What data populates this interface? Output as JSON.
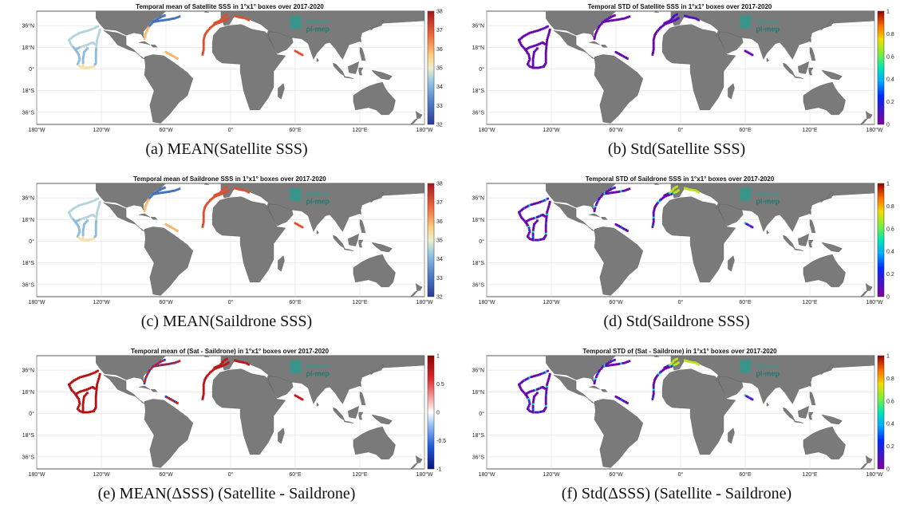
{
  "figure": {
    "lat_labels": [
      "36°N",
      "18°N",
      "0°",
      "18°S",
      "36°S"
    ],
    "lon_labels": [
      "180°W",
      "120°W",
      "60°W",
      "0°",
      "60°E",
      "120°E",
      "180°W"
    ],
    "watermark": {
      "line1": "Saildrone",
      "line2": "pi-mep"
    },
    "colors": {
      "land": "#7a7a7a",
      "ocean": "#ffffff",
      "grid": "#d9d9d9"
    }
  },
  "panels": [
    {
      "id": "a",
      "title": "Temporal mean of Satellite SSS in 1°x1° boxes over 2017-2020",
      "caption": "(a) MEAN(Satellite SSS)",
      "colormap": "rdylbu",
      "ticks": [
        "38",
        "37",
        "36",
        "35",
        "34",
        "33",
        "32"
      ],
      "range": [
        32,
        38
      ]
    },
    {
      "id": "b",
      "title": "Temporal STD of Satellite SSS in 1°x1° boxes over 2017-2020",
      "caption": "(b) Std(Satellite SSS)",
      "colormap": "jet",
      "ticks": [
        "1",
        "0.8",
        "0.6",
        "0.4",
        "0.2",
        "0"
      ],
      "range": [
        0,
        1
      ]
    },
    {
      "id": "c",
      "title": "Temporal mean of Saildrone SSS in 1°x1° boxes over 2017-2020",
      "caption": "(c) MEAN(Saildrone SSS)",
      "colormap": "rdylbu",
      "ticks": [
        "38",
        "37",
        "36",
        "35",
        "34",
        "33",
        "32"
      ],
      "range": [
        32,
        38
      ]
    },
    {
      "id": "d",
      "title": "Temporal STD of Saildrone SSS in 1°x1° boxes over 2017-2020",
      "caption": "(d) Std(Saildrone SSS)",
      "colormap": "jet",
      "ticks": [
        "1",
        "0.8",
        "0.6",
        "0.4",
        "0.2",
        "0"
      ],
      "range": [
        0,
        1
      ]
    },
    {
      "id": "e",
      "title": "Temporal mean of (Sat - Saildrone) in 1°x1° boxes over 2017-2020",
      "caption": "(e) MEAN(ΔSSS) (Satellite - Saildrone)",
      "colormap": "bwr",
      "ticks": [
        "1",
        "0.5",
        "0",
        "-0.5",
        "-1"
      ],
      "range": [
        -1,
        1
      ]
    },
    {
      "id": "f",
      "title": "Temporal STD of (Sat - Saildrone) in 1°x1° boxes over 2017-2020",
      "caption": "(f) Std(ΔSSS) (Satellite - Saildrone)",
      "colormap": "jet",
      "ticks": [
        "1",
        "0.8",
        "0.6",
        "0.4",
        "0.2",
        "0"
      ],
      "range": [
        0,
        1
      ]
    }
  ]
}
